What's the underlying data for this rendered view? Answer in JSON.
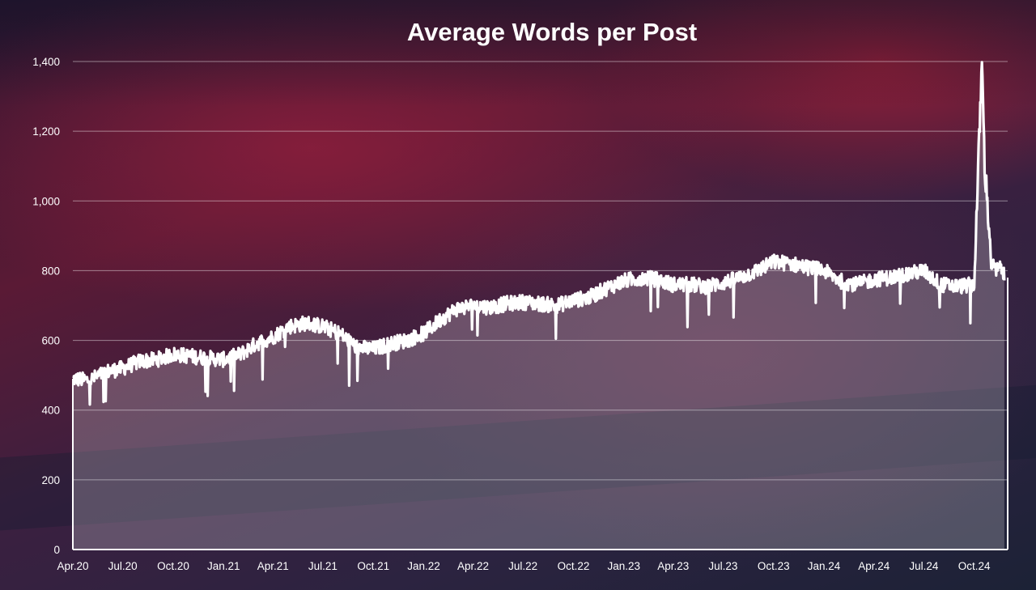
{
  "chart_data": {
    "type": "area",
    "title": "Average Words per Post",
    "xlabel": "",
    "ylabel": "",
    "ylim": [
      0,
      1400
    ],
    "xlim": [
      "2020-04-01",
      "2024-12-01"
    ],
    "y_ticks": [
      0,
      200,
      400,
      600,
      800,
      1000,
      1200,
      1400
    ],
    "y_tick_labels": [
      "0",
      "200",
      "400",
      "600",
      "800",
      "1,000",
      "1,200",
      "1,400"
    ],
    "x_tick_dates": [
      "2020-04-01",
      "2020-07-01",
      "2020-10-01",
      "2021-01-01",
      "2021-04-01",
      "2021-07-01",
      "2021-10-01",
      "2022-01-01",
      "2022-04-01",
      "2022-07-01",
      "2022-10-01",
      "2023-01-01",
      "2023-04-01",
      "2023-07-01",
      "2023-10-01",
      "2024-01-01",
      "2024-04-01",
      "2024-07-01",
      "2024-10-01"
    ],
    "x_tick_labels": [
      "Apr.20",
      "Jul.20",
      "Oct.20",
      "Jan.21",
      "Apr.21",
      "Jul.21",
      "Oct.21",
      "Jan.22",
      "Apr.22",
      "Jul.22",
      "Oct.22",
      "Jan.23",
      "Apr.23",
      "Jul.23",
      "Oct.23",
      "Jan.24",
      "Apr.24",
      "Jul.24",
      "Oct.24"
    ],
    "grid": true,
    "legend": "none",
    "line_color": "#ffffff",
    "fill_color": "#ffffff",
    "series": [
      {
        "x": [
          "2020-04-01",
          "2020-05-01",
          "2020-06-01",
          "2020-07-01",
          "2020-08-01",
          "2020-09-01",
          "2020-10-01",
          "2020-11-01",
          "2020-12-01",
          "2021-01-01",
          "2021-02-01",
          "2021-03-01",
          "2021-04-01",
          "2021-05-01",
          "2021-06-01",
          "2021-07-01",
          "2021-08-01",
          "2021-09-01",
          "2021-10-01",
          "2021-11-01",
          "2021-12-01",
          "2022-01-01",
          "2022-02-01",
          "2022-03-01",
          "2022-04-01",
          "2022-05-01",
          "2022-06-01",
          "2022-07-01",
          "2022-08-01",
          "2022-09-01",
          "2022-10-01",
          "2022-11-01",
          "2022-12-01",
          "2023-01-01",
          "2023-02-01",
          "2023-03-01",
          "2023-04-01",
          "2023-05-01",
          "2023-06-01",
          "2023-07-01",
          "2023-08-01",
          "2023-09-01",
          "2023-10-01",
          "2023-11-01",
          "2023-12-01",
          "2024-01-01",
          "2024-02-01",
          "2024-03-01",
          "2024-04-01",
          "2024-05-01",
          "2024-06-01",
          "2024-07-01",
          "2024-08-01",
          "2024-09-01",
          "2024-10-01",
          "2024-10-15",
          "2024-10-20",
          "2024-10-25",
          "2024-11-01",
          "2024-11-10",
          "2024-11-20",
          "2024-11-25"
        ],
        "values": [
          490,
          485,
          510,
          520,
          540,
          545,
          560,
          555,
          550,
          545,
          560,
          590,
          610,
          640,
          650,
          640,
          620,
          580,
          575,
          590,
          600,
          620,
          660,
          690,
          700,
          695,
          705,
          710,
          705,
          700,
          715,
          725,
          750,
          770,
          780,
          775,
          760,
          760,
          755,
          765,
          780,
          800,
          825,
          820,
          810,
          800,
          770,
          760,
          775,
          780,
          790,
          800,
          760,
          755,
          760,
          1400,
          1100,
          1000,
          820,
          800,
          810,
          780
        ]
      }
    ]
  }
}
